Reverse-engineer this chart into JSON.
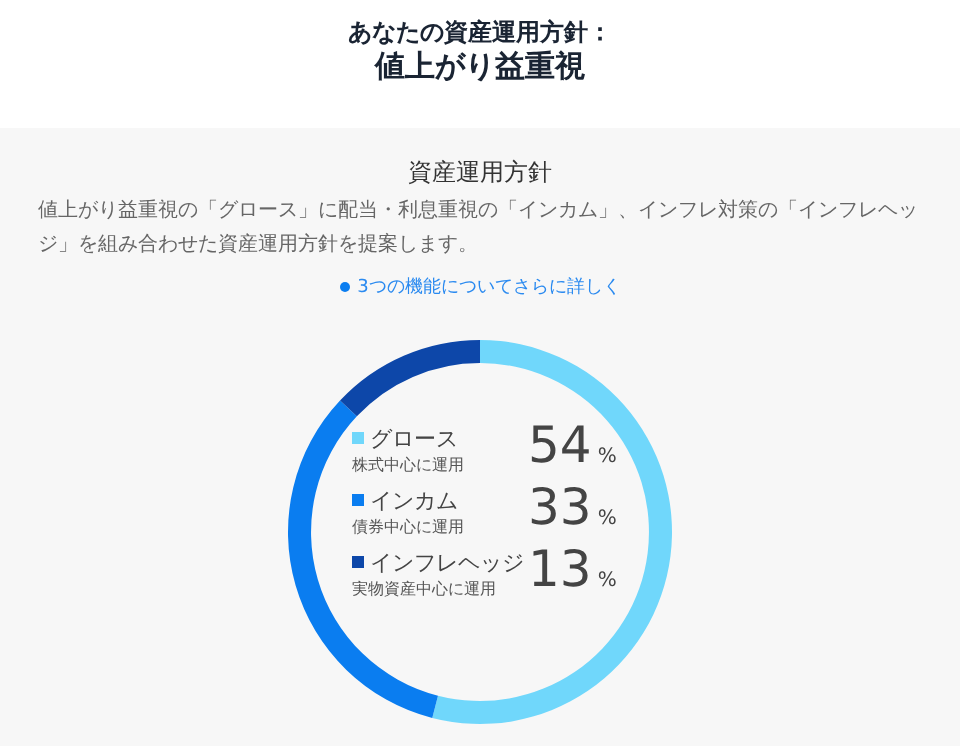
{
  "chart_data": {
    "type": "donut",
    "title": "あなたの資産運用方針：",
    "subtitle": "値上がり益重視",
    "annotations": [
      "資産運用方針",
      "値上がり益重視の「グロース」に配当・利息重視の「インカム」、インフレ対策の「インフレヘッジ」を組み合わせた資産運用方針を提案します。",
      "3つの機能についてさらに詳しく",
      "株式中心に運用",
      "債券中心に運用",
      "実物資産中心に運用"
    ],
    "categories": [
      "グロース",
      "インカム",
      "インフレヘッジ"
    ],
    "values": [
      54,
      33,
      13
    ],
    "value_labels": [
      "54%",
      "33%",
      "13%"
    ],
    "colors": [
      "#70d7fb",
      "#0a7df0",
      "#0d47a9"
    ],
    "legend": "center"
  }
}
